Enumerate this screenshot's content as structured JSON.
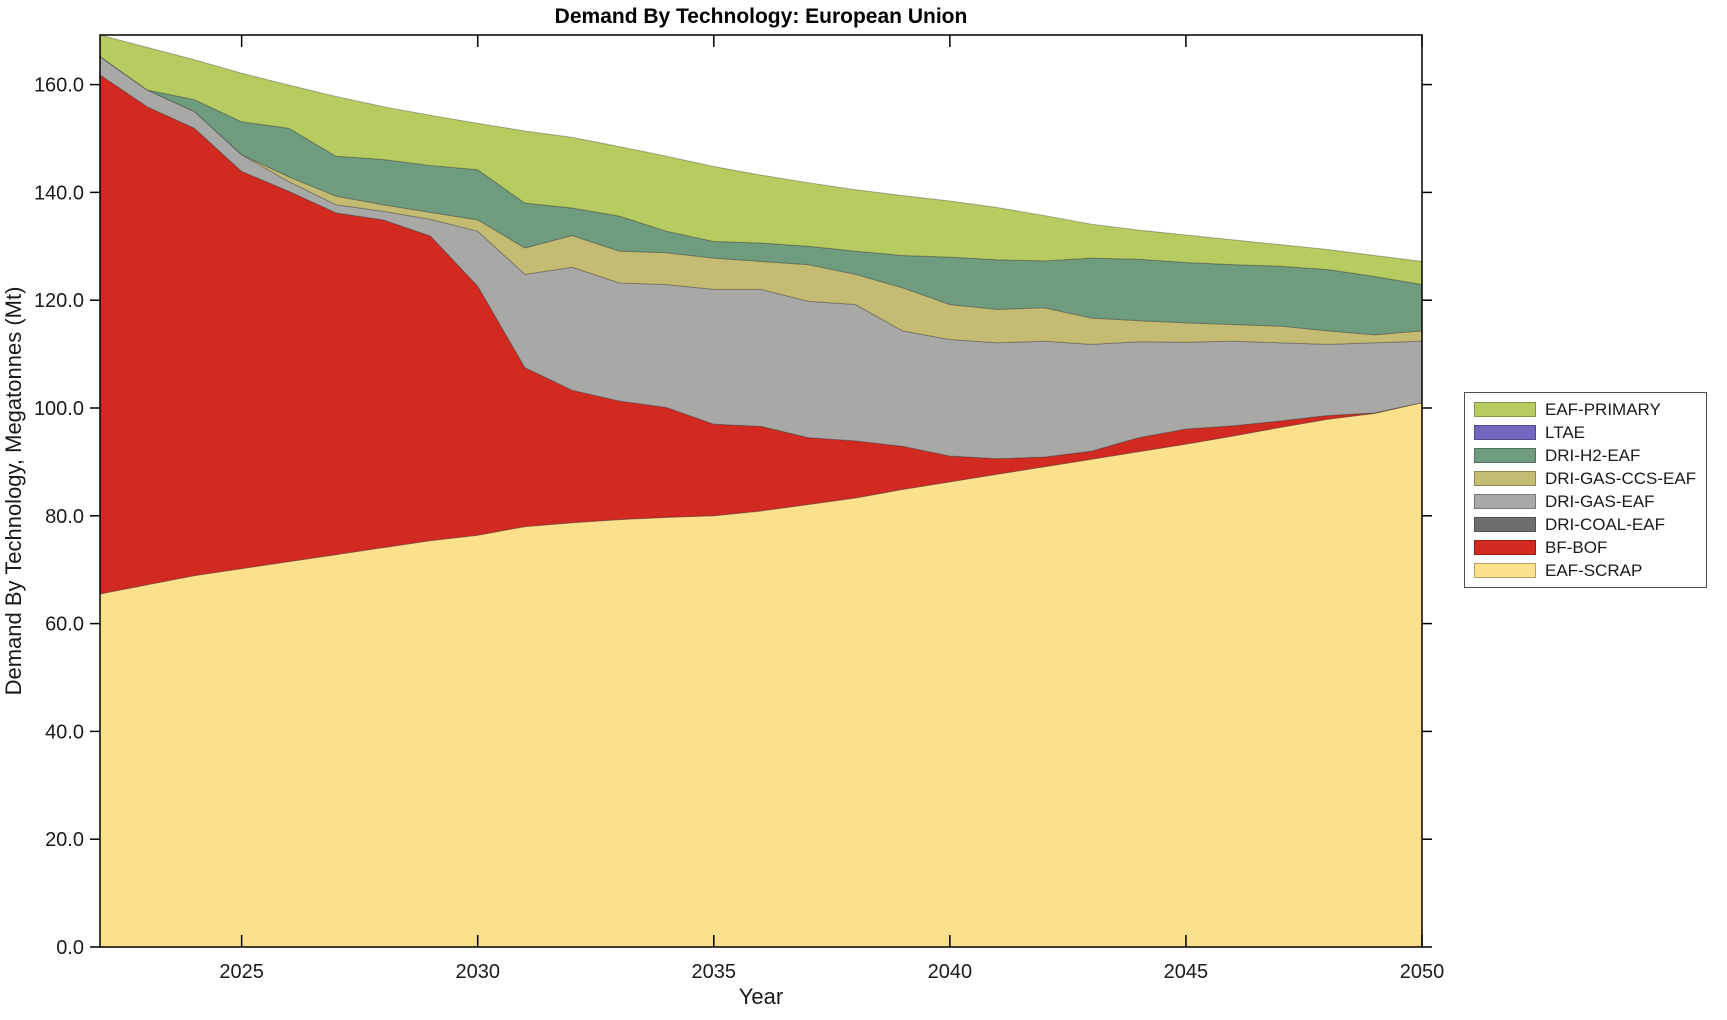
{
  "chart_data": {
    "type": "area",
    "stacked": true,
    "title": "Demand By Technology: European Union",
    "xlabel": "Year",
    "ylabel": "Demand By Technology, Megatonnes (Mt)",
    "grid": false,
    "legend_position": "right-outside",
    "xlim": [
      2022,
      2050
    ],
    "ylim": [
      0,
      169.2
    ],
    "xticks": {
      "values": [
        2025,
        2030,
        2035,
        2040,
        2045,
        2050
      ],
      "labels": [
        "2025",
        "2030",
        "2035",
        "2040",
        "2045",
        "2050"
      ]
    },
    "yticks": {
      "values": [
        0,
        20,
        40,
        60,
        80,
        100,
        120,
        140,
        160
      ],
      "labels": [
        "0.0",
        "20.0",
        "40.0",
        "60.0",
        "80.0",
        "100.0",
        "120.0",
        "140.0",
        "160.0"
      ]
    },
    "x": [
      2022,
      2023,
      2024,
      2025,
      2026,
      2027,
      2028,
      2029,
      2030,
      2031,
      2032,
      2033,
      2034,
      2035,
      2036,
      2037,
      2038,
      2039,
      2040,
      2041,
      2042,
      2043,
      2044,
      2045,
      2046,
      2047,
      2048,
      2049,
      2050
    ],
    "series": [
      {
        "name": "EAF-SCRAP",
        "color": "#FDE08C",
        "values": [
          65.5,
          67.2,
          68.9,
          70.2,
          71.5,
          72.8,
          74.1,
          75.4,
          76.4,
          78.0,
          78.7,
          79.3,
          79.7,
          80.0,
          80.9,
          82.1,
          83.3,
          84.9,
          86.3,
          87.7,
          89.1,
          90.5,
          91.9,
          93.3,
          94.8,
          96.4,
          97.9,
          99.0,
          101.0
        ]
      },
      {
        "name": "BF-BOF",
        "color": "#D22A20",
        "values": [
          96.3,
          88.7,
          83.0,
          73.7,
          68.7,
          63.4,
          60.8,
          56.5,
          46.2,
          29.5,
          24.6,
          22.0,
          20.4,
          17.0,
          15.7,
          12.4,
          10.6,
          8.0,
          4.8,
          2.9,
          1.8,
          1.5,
          2.6,
          2.8,
          1.9,
          1.2,
          0.7,
          0.1,
          0.0
        ]
      },
      {
        "name": "DRI-COAL-EAF",
        "color": "#6E6E6E",
        "values": [
          0,
          0,
          0,
          0,
          0,
          0,
          0,
          0,
          0,
          0,
          0,
          0,
          0,
          0,
          0,
          0,
          0,
          0,
          0,
          0,
          0,
          0,
          0,
          0,
          0,
          0,
          0,
          0,
          0
        ]
      },
      {
        "name": "DRI-GAS-EAF",
        "color": "#A8A8A6",
        "values": [
          3.4,
          3.1,
          3.1,
          3.1,
          1.8,
          1.5,
          1.6,
          3.1,
          10.2,
          17.3,
          22.8,
          21.9,
          22.8,
          25.0,
          25.4,
          25.3,
          25.3,
          21.4,
          21.6,
          21.5,
          21.5,
          19.8,
          17.8,
          16.1,
          15.7,
          14.5,
          13.2,
          13.0,
          11.4
        ]
      },
      {
        "name": "DRI-GAS-CCS-EAF",
        "color": "#C5BC74",
        "values": [
          0,
          0,
          0,
          0,
          0.9,
          1.6,
          1.2,
          1.3,
          2.1,
          4.9,
          5.9,
          5.9,
          5.9,
          5.8,
          5.2,
          6.8,
          5.6,
          8.0,
          6.5,
          6.2,
          6.2,
          4.9,
          3.9,
          3.6,
          3.1,
          3.1,
          2.5,
          1.5,
          1.9
        ]
      },
      {
        "name": "DRI-H2-EAF",
        "color": "#6F9B7E",
        "values": [
          0,
          0,
          2.2,
          6.1,
          9.0,
          7.4,
          8.4,
          8.7,
          9.3,
          8.3,
          5.1,
          6.5,
          4.0,
          3.1,
          3.4,
          3.4,
          4.3,
          6.0,
          8.8,
          9.2,
          8.7,
          11.1,
          11.4,
          11.2,
          11.1,
          11.1,
          11.4,
          10.8,
          8.6
        ]
      },
      {
        "name": "LTAE",
        "color": "#7167BE",
        "values": [
          0,
          0,
          0,
          0,
          0,
          0,
          0,
          0,
          0,
          0,
          0,
          0,
          0,
          0,
          0,
          0,
          0,
          0,
          0,
          0,
          0,
          0,
          0,
          0,
          0,
          0,
          0,
          0,
          0
        ]
      },
      {
        "name": "EAF-PRIMARY",
        "color": "#B6CB60",
        "values": [
          4.0,
          7.9,
          7.4,
          9.0,
          8.0,
          11.1,
          9.8,
          9.3,
          8.6,
          13.4,
          13.1,
          12.9,
          13.9,
          13.9,
          12.6,
          11.8,
          11.4,
          11.1,
          10.4,
          9.7,
          8.4,
          6.3,
          5.4,
          5.1,
          4.6,
          4.0,
          3.7,
          3.9,
          4.3
        ]
      }
    ],
    "legend_order_top_to_bottom": [
      "EAF-PRIMARY",
      "LTAE",
      "DRI-H2-EAF",
      "DRI-GAS-CCS-EAF",
      "DRI-GAS-EAF",
      "DRI-COAL-EAF",
      "BF-BOF",
      "EAF-SCRAP"
    ]
  },
  "style": {
    "frame_color": "#000000",
    "text_color": "#1a1a1a",
    "background": "#ffffff"
  }
}
